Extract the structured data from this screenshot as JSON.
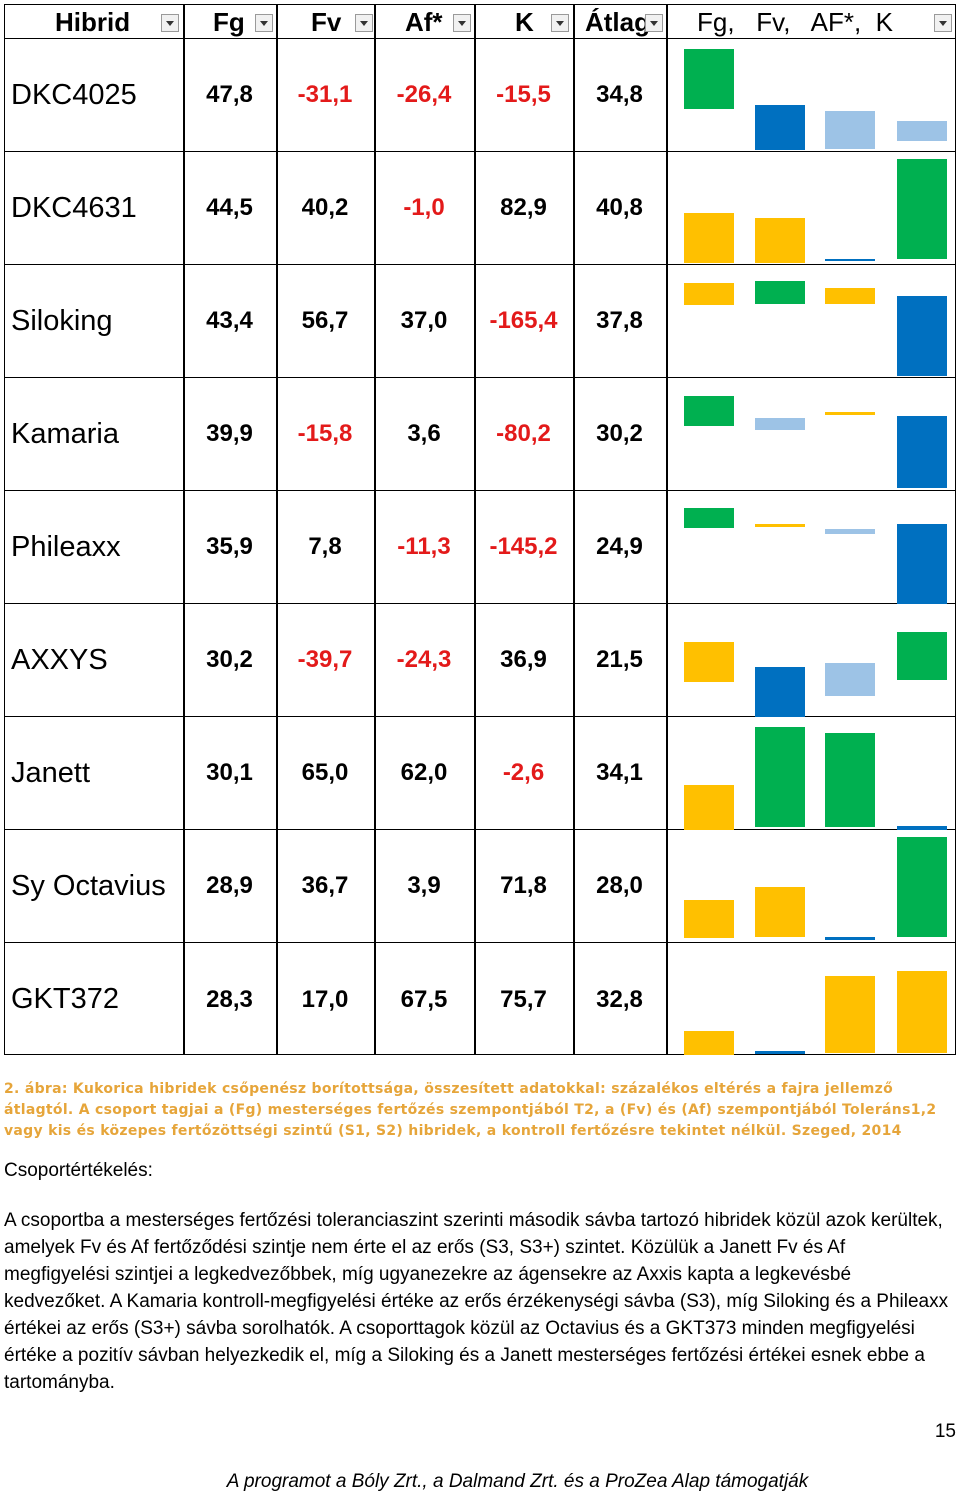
{
  "table": {
    "headers": [
      "Hibrid",
      "Fg",
      "Fv",
      "Af*",
      "K",
      "Átlag",
      "Fg,   Fv,   AF*,  K"
    ],
    "rows": [
      {
        "name": "DKC4025",
        "fg": "47,8",
        "fv": "-31,1",
        "af": "-26,4",
        "k": "-15,5",
        "avg": "34,8"
      },
      {
        "name": "DKC4631",
        "fg": "44,5",
        "fv": "40,2",
        "af": "-1,0",
        "k": "82,9",
        "avg": "40,8"
      },
      {
        "name": "Siloking",
        "fg": "43,4",
        "fv": "56,7",
        "af": "37,0",
        "k": "-165,4",
        "avg": "37,8"
      },
      {
        "name": "Kamaria",
        "fg": "39,9",
        "fv": "-15,8",
        "af": "3,6",
        "k": "-80,2",
        "avg": "30,2"
      },
      {
        "name": "Phileaxx",
        "fg": "35,9",
        "fv": "7,8",
        "af": "-11,3",
        "k": "-145,2",
        "avg": "24,9"
      },
      {
        "name": "AXXYS",
        "fg": "30,2",
        "fv": "-39,7",
        "af": "-24,3",
        "k": "36,9",
        "avg": "21,5"
      },
      {
        "name": "Janett",
        "fg": "30,1",
        "fv": "65,0",
        "af": "62,0",
        "k": "-2,6",
        "avg": "34,1"
      },
      {
        "name": "Sy Octavius",
        "fg": "28,9",
        "fv": "36,7",
        "af": "3,9",
        "k": "71,8",
        "avg": "28,0"
      },
      {
        "name": "GKT372",
        "fg": "28,3",
        "fv": "17,0",
        "af": "67,5",
        "k": "75,7",
        "avg": "32,8"
      }
    ]
  },
  "bar_colors": {
    "1": "#00b050",
    "2": "#ffc000",
    "3": "#0070c0",
    "4": "#9dc3e6"
  },
  "bars": [
    [
      1,
      3,
      4,
      4
    ],
    [
      2,
      2,
      3,
      1
    ],
    [
      2,
      1,
      2,
      3
    ],
    [
      1,
      4,
      2,
      3
    ],
    [
      1,
      2,
      4,
      3
    ],
    [
      2,
      3,
      4,
      1
    ],
    [
      2,
      1,
      1,
      3
    ],
    [
      2,
      2,
      3,
      1
    ],
    [
      2,
      3,
      2,
      2
    ]
  ],
  "caption": "2. ábra: Kukorica hibridek csőpenész borítottsága, összesített adatokkal: százalékos eltérés a fajra jellemző átlagtól. A csoport tagjai a (Fg) mesterséges fertőzés szempontjából T2, a (Fv) és (Af) szempontjából Toleráns1,2 vagy kis és közepes  fertőzöttségi szintű (S1, S2) hibridek, a kontroll fertőzésre tekintet nélkül. Szeged, 2014",
  "heading": "Csoportértékelés:",
  "paragraph": "A csoportba a mesterséges fertőzési toleranciaszint szerinti második sávba tartozó hibridek közül azok kerültek, amelyek Fv és Af fertőződési szintje nem érte el az erős (S3, S3+) szintet. Közülük a Janett Fv és Af megfigyelési szintjei a legkedvezőbbek, míg ugyanezekre az ágensekre az Axxis kapta a legkevésbé kedvezőket. A  Kamaria kontroll-megfigyelési értéke az erős érzékenységi sávba (S3), míg Siloking és a Phileaxx értékei az erős (S3+) sávba sorolhatók. A csoporttagok közül az Octavius és a GKT373 minden megfigyelési értéke a pozitív sávban helyezkedik el, míg a Siloking és a Janett mesterséges fertőzési értékei esnek ebbe a tartományba.",
  "page_number": "15",
  "footer": "A programot a Bóly Zrt., a Dalmand Zrt. és a ProZea Alap támogatják"
}
